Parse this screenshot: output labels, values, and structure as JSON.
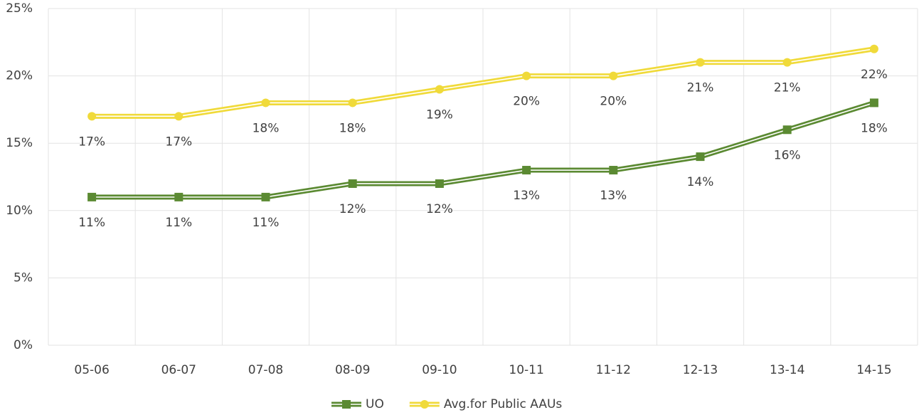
{
  "chart_data": {
    "type": "line",
    "categories": [
      "05-06",
      "06-07",
      "07-08",
      "08-09",
      "09-10",
      "10-11",
      "11-12",
      "12-13",
      "13-14",
      "14-15"
    ],
    "series": [
      {
        "name": "UO",
        "color": "#5b8a32",
        "marker": "square",
        "values": [
          11,
          11,
          11,
          12,
          12,
          13,
          13,
          14,
          16,
          18
        ],
        "value_labels": [
          "11%",
          "11%",
          "11%",
          "12%",
          "12%",
          "13%",
          "13%",
          "14%",
          "16%",
          "18%"
        ]
      },
      {
        "name": "Avg.for Public AAUs",
        "color": "#f0da3a",
        "marker": "circle",
        "values": [
          17,
          17,
          18,
          18,
          19,
          20,
          20,
          21,
          21,
          22
        ],
        "value_labels": [
          "17%",
          "17%",
          "18%",
          "18%",
          "19%",
          "20%",
          "20%",
          "21%",
          "21%",
          "22%"
        ]
      }
    ],
    "ylim": [
      0,
      25
    ],
    "yticks": [
      {
        "value": 0,
        "label": "0%"
      },
      {
        "value": 5,
        "label": "5%"
      },
      {
        "value": 10,
        "label": "10%"
      },
      {
        "value": 15,
        "label": "15%"
      },
      {
        "value": 20,
        "label": "20%"
      },
      {
        "value": 25,
        "label": "25%"
      }
    ],
    "grid": true,
    "legend": "bottom"
  }
}
